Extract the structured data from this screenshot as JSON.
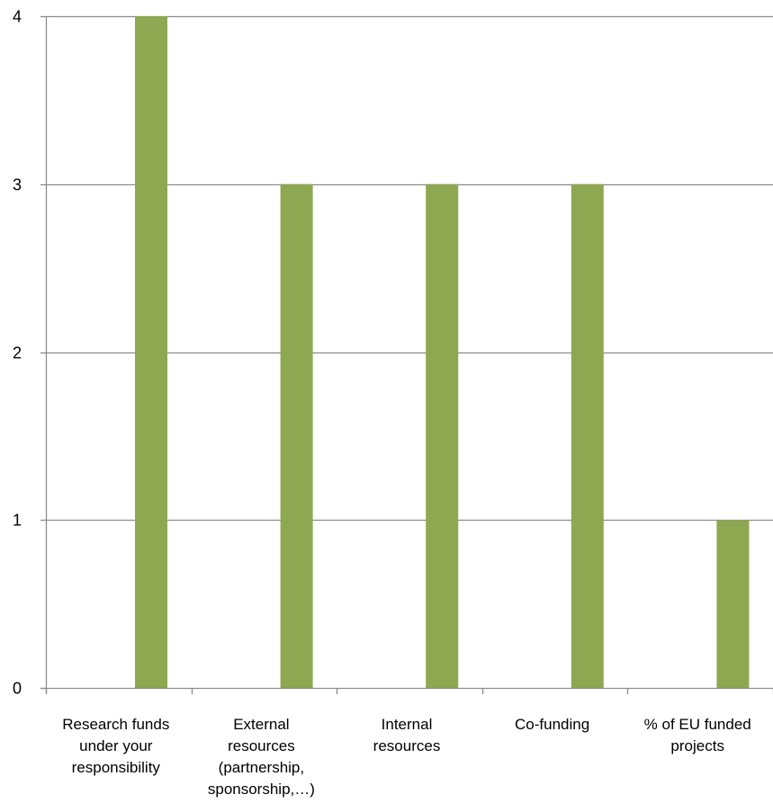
{
  "chart_data": {
    "type": "bar",
    "title": "",
    "xlabel": "",
    "ylabel": "",
    "categories": [
      "Research funds under your responsibility",
      "External resources (partnership, sponsorship,…)",
      "Internal resources",
      "Co-funding",
      "% of EU funded projects"
    ],
    "category_label_lines": [
      [
        "Research funds",
        "under your",
        "responsibility"
      ],
      [
        "External",
        "resources",
        "(partnership,",
        "sponsorship,…)"
      ],
      [
        "Internal",
        "resources"
      ],
      [
        "Co-funding"
      ],
      [
        "% of EU funded",
        "projects"
      ]
    ],
    "values": [
      4,
      3,
      3,
      3,
      1
    ],
    "ylim": [
      0,
      4
    ],
    "yticks": [
      0,
      1,
      2,
      3,
      4
    ],
    "grid": true,
    "legend": "none",
    "bar_color": "#8DA850",
    "gridline_color": "#8C8C8C"
  }
}
